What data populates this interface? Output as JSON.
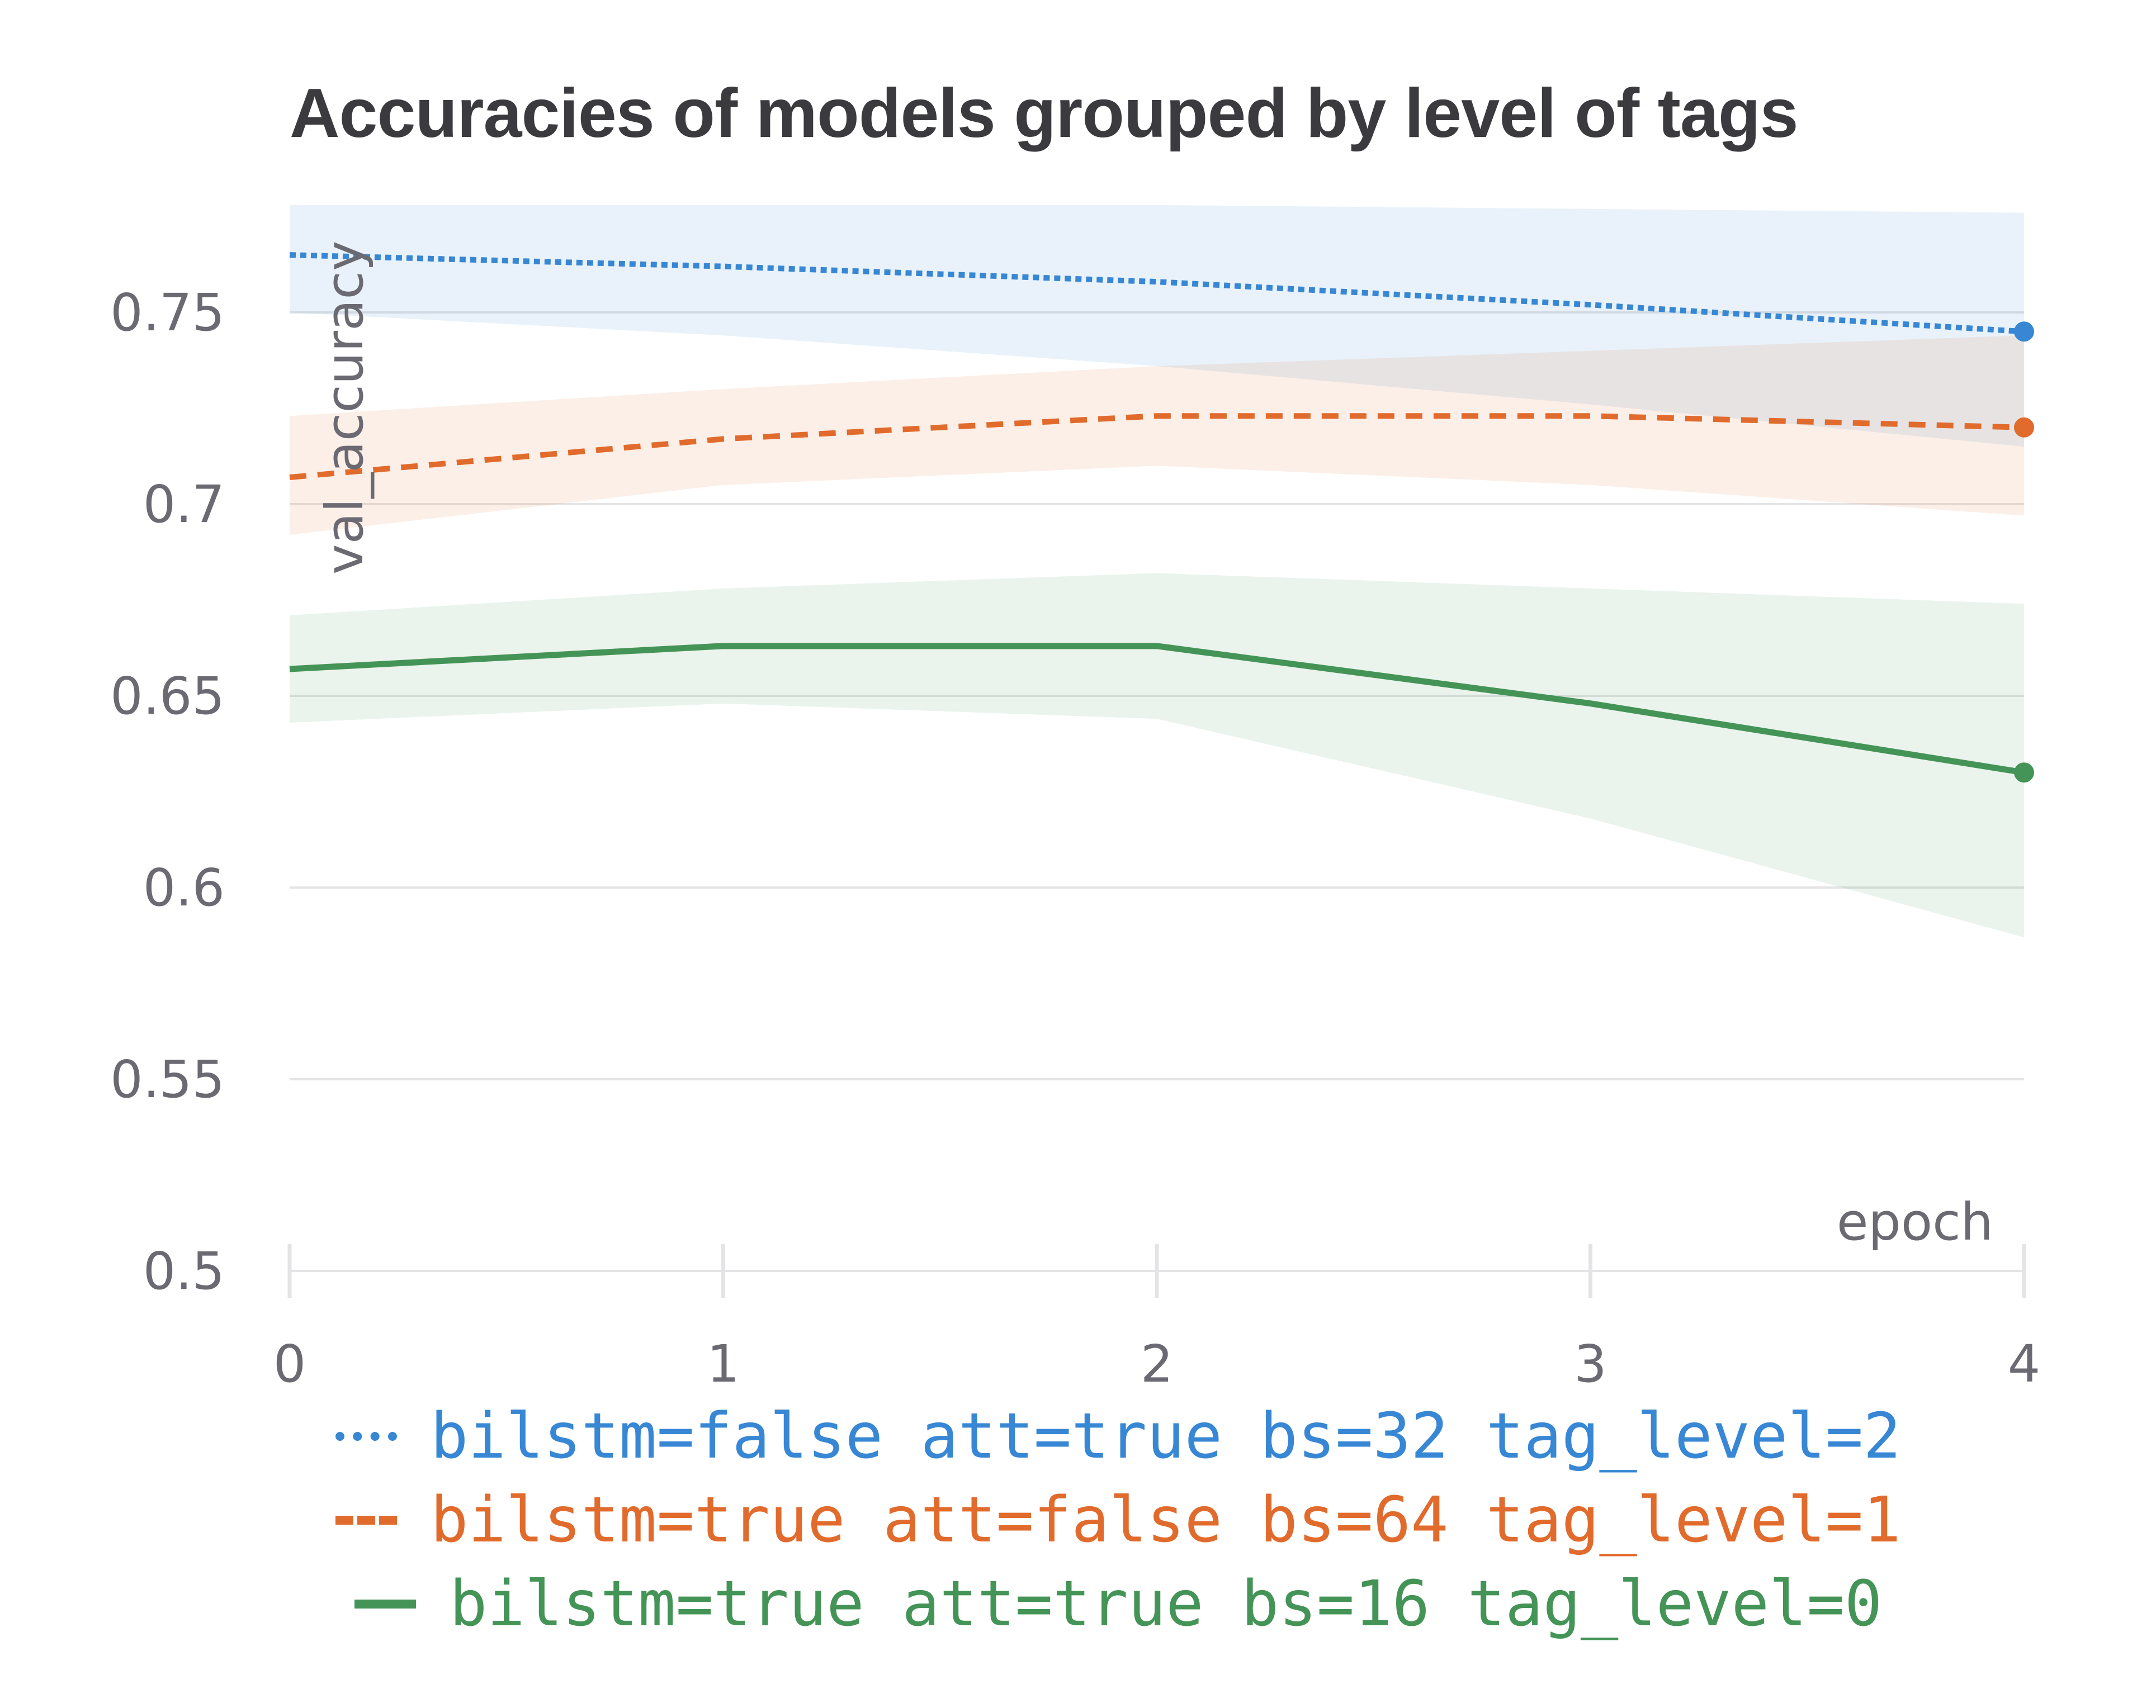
{
  "chart_data": {
    "type": "line",
    "title": "Accuracies of models grouped by level of tags",
    "xlabel": "epoch",
    "ylabel": "val_accuracy",
    "x": [
      0,
      1,
      2,
      3,
      4
    ],
    "xlim": [
      0,
      4
    ],
    "ylim": [
      0.5,
      0.78
    ],
    "xticks": [
      "0",
      "1",
      "2",
      "3",
      "4"
    ],
    "yticks": [
      "0.5",
      "0.55",
      "0.6",
      "0.65",
      "0.7",
      "0.75"
    ],
    "grid": "horizontal",
    "legend_position": "bottom",
    "series": [
      {
        "name": "bilstm=false att=true bs=32 tag_level=2",
        "color": "#3787d4",
        "style": "dotted",
        "values": [
          0.765,
          0.762,
          0.758,
          0.752,
          0.745
        ],
        "band_upper": [
          0.778,
          0.778,
          0.778,
          0.777,
          0.776
        ],
        "band_lower": [
          0.75,
          0.744,
          0.736,
          0.726,
          0.715
        ]
      },
      {
        "name": "bilstm=true att=false bs=64 tag_level=1",
        "color": "#e16b2c",
        "style": "dashed",
        "values": [
          0.707,
          0.717,
          0.723,
          0.723,
          0.72
        ],
        "band_upper": [
          0.723,
          0.73,
          0.736,
          0.74,
          0.744
        ],
        "band_lower": [
          0.692,
          0.705,
          0.71,
          0.705,
          0.697
        ]
      },
      {
        "name": "bilstm=true att=true bs=16 tag_level=0",
        "color": "#459457",
        "style": "solid",
        "values": [
          0.657,
          0.663,
          0.663,
          0.648,
          0.63
        ],
        "band_upper": [
          0.671,
          0.678,
          0.682,
          0.678,
          0.674
        ],
        "band_lower": [
          0.643,
          0.648,
          0.644,
          0.618,
          0.587
        ]
      }
    ]
  }
}
